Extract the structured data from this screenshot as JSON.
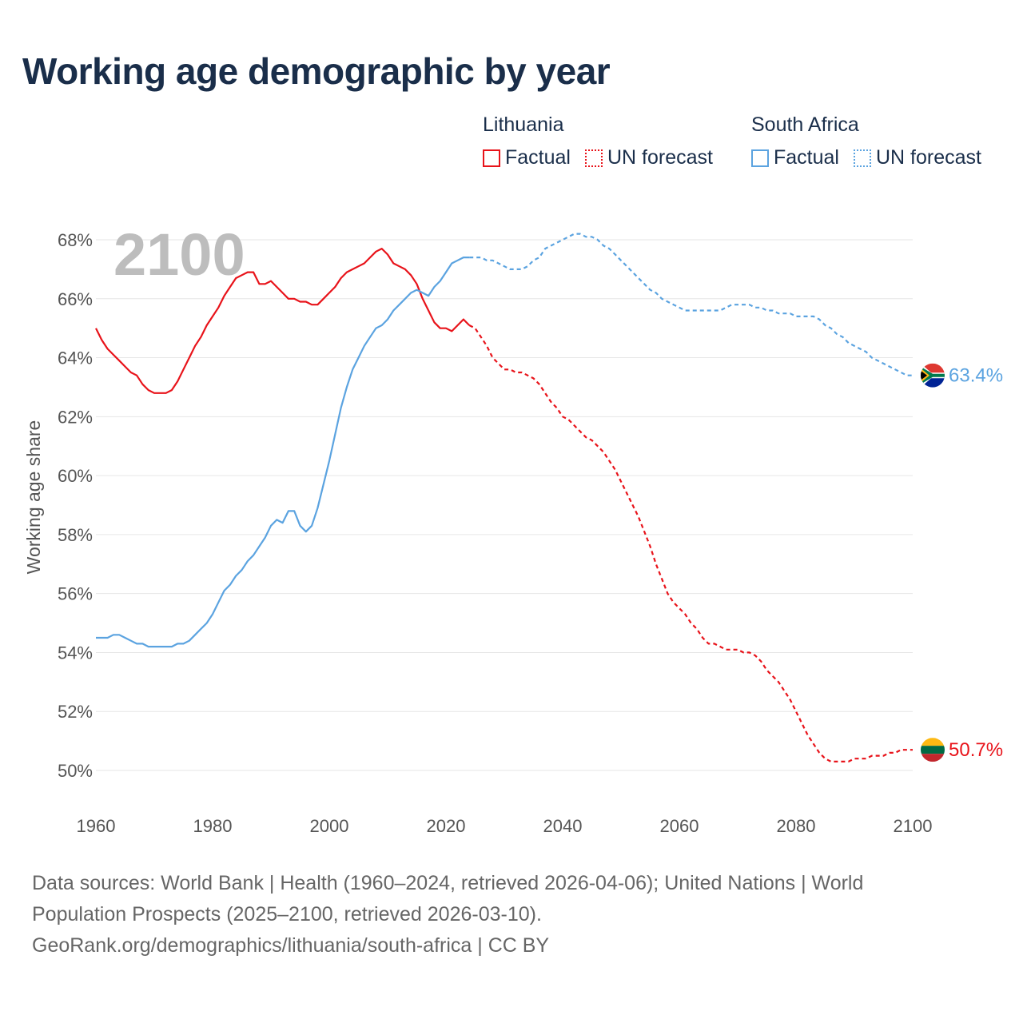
{
  "title": "Working age demographic by year",
  "legend": [
    {
      "country": "Lithuania",
      "factual_label": "Factual",
      "forecast_label": "UN forecast",
      "color": "#e8131a"
    },
    {
      "country": "South Africa",
      "factual_label": "Factual",
      "forecast_label": "UN forecast",
      "color": "#5ba3e0"
    }
  ],
  "source": {
    "line1": "Data sources: World Bank | Health (1960–2024, retrieved 2026-04-06); United Nations | World",
    "line2": "Population Prospects (2025–2100, retrieved 2026-03-10).",
    "line3": "GeoRank.org/demographics/lithuania/south-africa | CC BY"
  },
  "chart_data": {
    "type": "line",
    "title": "Working age demographic by year",
    "xlabel": "",
    "ylabel": "Working age share",
    "year_display": "2100",
    "xlim": [
      1960,
      2100
    ],
    "ylim": [
      50,
      68
    ],
    "x_ticks": [
      1960,
      1980,
      2000,
      2020,
      2040,
      2060,
      2080,
      2100
    ],
    "y_ticks": [
      {
        "value": 50,
        "label": "50%"
      },
      {
        "value": 52,
        "label": "52%"
      },
      {
        "value": 54,
        "label": "54%"
      },
      {
        "value": 56,
        "label": "56%"
      },
      {
        "value": 58,
        "label": "58%"
      },
      {
        "value": 60,
        "label": "60%"
      },
      {
        "value": 62,
        "label": "62%"
      },
      {
        "value": 64,
        "label": "64%"
      },
      {
        "value": 66,
        "label": "66%"
      },
      {
        "value": 68,
        "label": "68%"
      }
    ],
    "grid": true,
    "factual_until": 2024,
    "series": [
      {
        "name": "Lithuania",
        "color": "#e8131a",
        "end_label": "50.7%",
        "flag": "lithuania-flag",
        "flag_colors": [
          "#fdb913",
          "#006a44",
          "#c1272d"
        ],
        "points": [
          [
            1960,
            65.0
          ],
          [
            1961,
            64.6
          ],
          [
            1962,
            64.3
          ],
          [
            1963,
            64.1
          ],
          [
            1964,
            63.9
          ],
          [
            1965,
            63.7
          ],
          [
            1966,
            63.5
          ],
          [
            1967,
            63.4
          ],
          [
            1968,
            63.1
          ],
          [
            1969,
            62.9
          ],
          [
            1970,
            62.8
          ],
          [
            1971,
            62.8
          ],
          [
            1972,
            62.8
          ],
          [
            1973,
            62.9
          ],
          [
            1974,
            63.2
          ],
          [
            1975,
            63.6
          ],
          [
            1976,
            64.0
          ],
          [
            1977,
            64.4
          ],
          [
            1978,
            64.7
          ],
          [
            1979,
            65.1
          ],
          [
            1980,
            65.4
          ],
          [
            1981,
            65.7
          ],
          [
            1982,
            66.1
          ],
          [
            1983,
            66.4
          ],
          [
            1984,
            66.7
          ],
          [
            1985,
            66.8
          ],
          [
            1986,
            66.9
          ],
          [
            1987,
            66.9
          ],
          [
            1988,
            66.5
          ],
          [
            1989,
            66.5
          ],
          [
            1990,
            66.6
          ],
          [
            1991,
            66.4
          ],
          [
            1992,
            66.2
          ],
          [
            1993,
            66.0
          ],
          [
            1994,
            66.0
          ],
          [
            1995,
            65.9
          ],
          [
            1996,
            65.9
          ],
          [
            1997,
            65.8
          ],
          [
            1998,
            65.8
          ],
          [
            1999,
            66.0
          ],
          [
            2000,
            66.2
          ],
          [
            2001,
            66.4
          ],
          [
            2002,
            66.7
          ],
          [
            2003,
            66.9
          ],
          [
            2004,
            67.0
          ],
          [
            2005,
            67.1
          ],
          [
            2006,
            67.2
          ],
          [
            2007,
            67.4
          ],
          [
            2008,
            67.6
          ],
          [
            2009,
            67.7
          ],
          [
            2010,
            67.5
          ],
          [
            2011,
            67.2
          ],
          [
            2012,
            67.1
          ],
          [
            2013,
            67.0
          ],
          [
            2014,
            66.8
          ],
          [
            2015,
            66.5
          ],
          [
            2016,
            66.0
          ],
          [
            2017,
            65.6
          ],
          [
            2018,
            65.2
          ],
          [
            2019,
            65.0
          ],
          [
            2020,
            65.0
          ],
          [
            2021,
            64.9
          ],
          [
            2022,
            65.1
          ],
          [
            2023,
            65.3
          ],
          [
            2024,
            65.1
          ],
          [
            2025,
            65.0
          ],
          [
            2026,
            64.7
          ],
          [
            2027,
            64.4
          ],
          [
            2028,
            64.0
          ],
          [
            2029,
            63.8
          ],
          [
            2030,
            63.6
          ],
          [
            2031,
            63.6
          ],
          [
            2032,
            63.5
          ],
          [
            2033,
            63.5
          ],
          [
            2034,
            63.4
          ],
          [
            2035,
            63.3
          ],
          [
            2036,
            63.1
          ],
          [
            2037,
            62.8
          ],
          [
            2038,
            62.5
          ],
          [
            2039,
            62.3
          ],
          [
            2040,
            62.0
          ],
          [
            2041,
            61.9
          ],
          [
            2042,
            61.7
          ],
          [
            2043,
            61.5
          ],
          [
            2044,
            61.3
          ],
          [
            2045,
            61.2
          ],
          [
            2046,
            61.0
          ],
          [
            2047,
            60.8
          ],
          [
            2048,
            60.5
          ],
          [
            2049,
            60.2
          ],
          [
            2050,
            59.8
          ],
          [
            2051,
            59.4
          ],
          [
            2052,
            59.0
          ],
          [
            2053,
            58.6
          ],
          [
            2054,
            58.1
          ],
          [
            2055,
            57.6
          ],
          [
            2056,
            57.0
          ],
          [
            2057,
            56.5
          ],
          [
            2058,
            56.0
          ],
          [
            2059,
            55.7
          ],
          [
            2060,
            55.5
          ],
          [
            2061,
            55.3
          ],
          [
            2062,
            55.0
          ],
          [
            2063,
            54.8
          ],
          [
            2064,
            54.5
          ],
          [
            2065,
            54.3
          ],
          [
            2066,
            54.3
          ],
          [
            2067,
            54.2
          ],
          [
            2068,
            54.1
          ],
          [
            2069,
            54.1
          ],
          [
            2070,
            54.1
          ],
          [
            2071,
            54.0
          ],
          [
            2072,
            54.0
          ],
          [
            2073,
            53.9
          ],
          [
            2074,
            53.7
          ],
          [
            2075,
            53.4
          ],
          [
            2076,
            53.2
          ],
          [
            2077,
            53.0
          ],
          [
            2078,
            52.7
          ],
          [
            2079,
            52.4
          ],
          [
            2080,
            52.0
          ],
          [
            2081,
            51.6
          ],
          [
            2082,
            51.2
          ],
          [
            2083,
            50.9
          ],
          [
            2084,
            50.6
          ],
          [
            2085,
            50.4
          ],
          [
            2086,
            50.3
          ],
          [
            2087,
            50.3
          ],
          [
            2088,
            50.3
          ],
          [
            2089,
            50.3
          ],
          [
            2090,
            50.4
          ],
          [
            2091,
            50.4
          ],
          [
            2092,
            50.4
          ],
          [
            2093,
            50.5
          ],
          [
            2094,
            50.5
          ],
          [
            2095,
            50.5
          ],
          [
            2096,
            50.6
          ],
          [
            2097,
            50.6
          ],
          [
            2098,
            50.7
          ],
          [
            2099,
            50.7
          ],
          [
            2100,
            50.7
          ]
        ]
      },
      {
        "name": "South Africa",
        "color": "#5ba3e0",
        "end_label": "63.4%",
        "flag": "south-africa-flag",
        "flag_colors": [
          "#de3831",
          "#002395",
          "#007a4d",
          "#ffb612",
          "#000000",
          "#ffffff"
        ],
        "points": [
          [
            1960,
            54.5
          ],
          [
            1961,
            54.5
          ],
          [
            1962,
            54.5
          ],
          [
            1963,
            54.6
          ],
          [
            1964,
            54.6
          ],
          [
            1965,
            54.5
          ],
          [
            1966,
            54.4
          ],
          [
            1967,
            54.3
          ],
          [
            1968,
            54.3
          ],
          [
            1969,
            54.2
          ],
          [
            1970,
            54.2
          ],
          [
            1971,
            54.2
          ],
          [
            1972,
            54.2
          ],
          [
            1973,
            54.2
          ],
          [
            1974,
            54.3
          ],
          [
            1975,
            54.3
          ],
          [
            1976,
            54.4
          ],
          [
            1977,
            54.6
          ],
          [
            1978,
            54.8
          ],
          [
            1979,
            55.0
          ],
          [
            1980,
            55.3
          ],
          [
            1981,
            55.7
          ],
          [
            1982,
            56.1
          ],
          [
            1983,
            56.3
          ],
          [
            1984,
            56.6
          ],
          [
            1985,
            56.8
          ],
          [
            1986,
            57.1
          ],
          [
            1987,
            57.3
          ],
          [
            1988,
            57.6
          ],
          [
            1989,
            57.9
          ],
          [
            1990,
            58.3
          ],
          [
            1991,
            58.5
          ],
          [
            1992,
            58.4
          ],
          [
            1993,
            58.8
          ],
          [
            1994,
            58.8
          ],
          [
            1995,
            58.3
          ],
          [
            1996,
            58.1
          ],
          [
            1997,
            58.3
          ],
          [
            1998,
            58.9
          ],
          [
            1999,
            59.7
          ],
          [
            2000,
            60.5
          ],
          [
            2001,
            61.4
          ],
          [
            2002,
            62.3
          ],
          [
            2003,
            63.0
          ],
          [
            2004,
            63.6
          ],
          [
            2005,
            64.0
          ],
          [
            2006,
            64.4
          ],
          [
            2007,
            64.7
          ],
          [
            2008,
            65.0
          ],
          [
            2009,
            65.1
          ],
          [
            2010,
            65.3
          ],
          [
            2011,
            65.6
          ],
          [
            2012,
            65.8
          ],
          [
            2013,
            66.0
          ],
          [
            2014,
            66.2
          ],
          [
            2015,
            66.3
          ],
          [
            2016,
            66.2
          ],
          [
            2017,
            66.1
          ],
          [
            2018,
            66.4
          ],
          [
            2019,
            66.6
          ],
          [
            2020,
            66.9
          ],
          [
            2021,
            67.2
          ],
          [
            2022,
            67.3
          ],
          [
            2023,
            67.4
          ],
          [
            2024,
            67.4
          ],
          [
            2025,
            67.4
          ],
          [
            2026,
            67.4
          ],
          [
            2027,
            67.3
          ],
          [
            2028,
            67.3
          ],
          [
            2029,
            67.2
          ],
          [
            2030,
            67.1
          ],
          [
            2031,
            67.0
          ],
          [
            2032,
            67.0
          ],
          [
            2033,
            67.0
          ],
          [
            2034,
            67.1
          ],
          [
            2035,
            67.3
          ],
          [
            2036,
            67.4
          ],
          [
            2037,
            67.7
          ],
          [
            2038,
            67.8
          ],
          [
            2039,
            67.9
          ],
          [
            2040,
            68.0
          ],
          [
            2041,
            68.1
          ],
          [
            2042,
            68.2
          ],
          [
            2043,
            68.2
          ],
          [
            2044,
            68.1
          ],
          [
            2045,
            68.1
          ],
          [
            2046,
            68.0
          ],
          [
            2047,
            67.8
          ],
          [
            2048,
            67.7
          ],
          [
            2049,
            67.5
          ],
          [
            2050,
            67.3
          ],
          [
            2051,
            67.1
          ],
          [
            2052,
            66.9
          ],
          [
            2053,
            66.7
          ],
          [
            2054,
            66.5
          ],
          [
            2055,
            66.3
          ],
          [
            2056,
            66.2
          ],
          [
            2057,
            66.0
          ],
          [
            2058,
            65.9
          ],
          [
            2059,
            65.8
          ],
          [
            2060,
            65.7
          ],
          [
            2061,
            65.6
          ],
          [
            2062,
            65.6
          ],
          [
            2063,
            65.6
          ],
          [
            2064,
            65.6
          ],
          [
            2065,
            65.6
          ],
          [
            2066,
            65.6
          ],
          [
            2067,
            65.6
          ],
          [
            2068,
            65.7
          ],
          [
            2069,
            65.8
          ],
          [
            2070,
            65.8
          ],
          [
            2071,
            65.8
          ],
          [
            2072,
            65.8
          ],
          [
            2073,
            65.7
          ],
          [
            2074,
            65.7
          ],
          [
            2075,
            65.6
          ],
          [
            2076,
            65.6
          ],
          [
            2077,
            65.5
          ],
          [
            2078,
            65.5
          ],
          [
            2079,
            65.5
          ],
          [
            2080,
            65.4
          ],
          [
            2081,
            65.4
          ],
          [
            2082,
            65.4
          ],
          [
            2083,
            65.4
          ],
          [
            2084,
            65.3
          ],
          [
            2085,
            65.1
          ],
          [
            2086,
            65.0
          ],
          [
            2087,
            64.8
          ],
          [
            2088,
            64.7
          ],
          [
            2089,
            64.5
          ],
          [
            2090,
            64.4
          ],
          [
            2091,
            64.3
          ],
          [
            2092,
            64.2
          ],
          [
            2093,
            64.0
          ],
          [
            2094,
            63.9
          ],
          [
            2095,
            63.8
          ],
          [
            2096,
            63.7
          ],
          [
            2097,
            63.6
          ],
          [
            2098,
            63.5
          ],
          [
            2099,
            63.4
          ],
          [
            2100,
            63.4
          ]
        ]
      }
    ]
  }
}
